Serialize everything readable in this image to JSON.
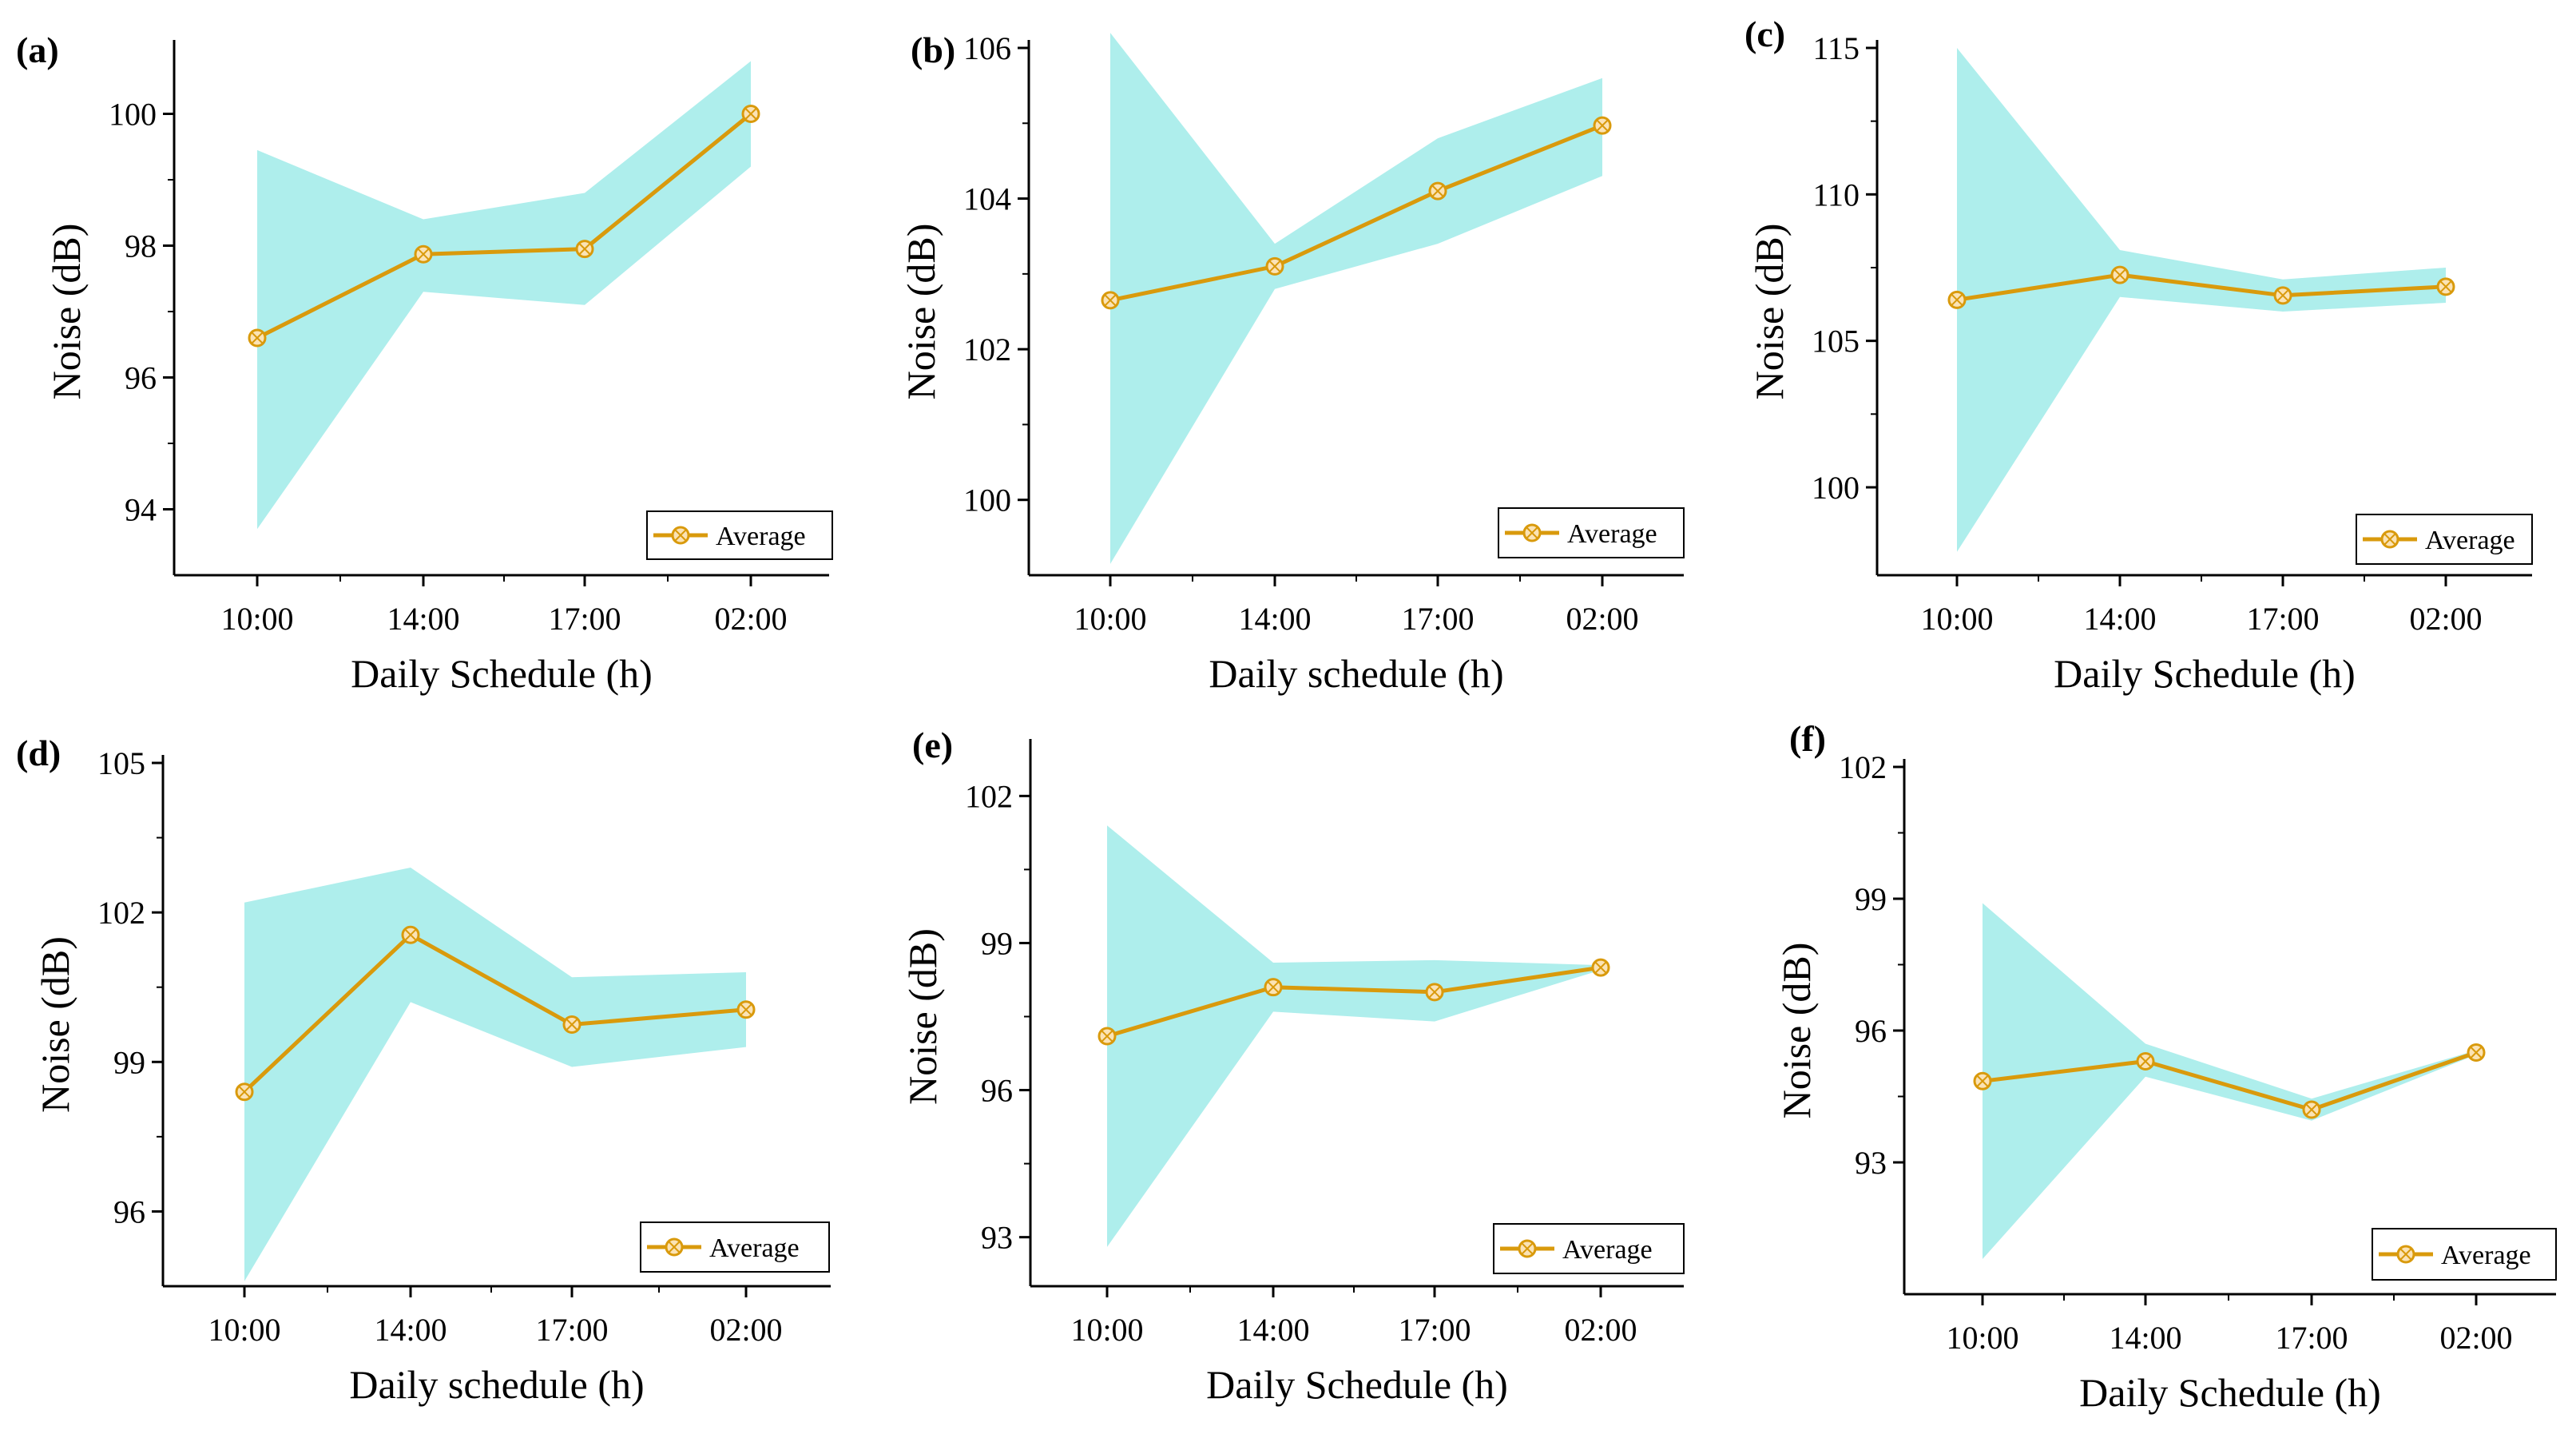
{
  "chart_data": [
    {
      "type": "line",
      "panel_label": "(a)",
      "title": "",
      "xlabel": "Daily Schedule (h)",
      "ylabel": "Noise (dB)",
      "categories": [
        "10:00",
        "14:00",
        "17:00",
        "02:00"
      ],
      "ylim": [
        93,
        101
      ],
      "yticks": [
        94,
        96,
        98,
        100
      ],
      "yticklabels": [
        "94",
        "96",
        "98",
        "100"
      ],
      "series": [
        {
          "name": "Average",
          "values": [
            96.6,
            97.87,
            97.95,
            100.0
          ]
        }
      ],
      "band": {
        "lower": [
          93.7,
          97.3,
          97.1,
          99.2
        ],
        "upper": [
          99.45,
          98.4,
          98.8,
          100.8
        ]
      },
      "legend": "bottom-right",
      "colors": {
        "line": "#d99a0c",
        "band": "#aeeeec",
        "marker_fill": "#fbe3b5"
      }
    },
    {
      "type": "line",
      "panel_label": "(b)",
      "title": "",
      "xlabel": "Daily schedule (h)",
      "ylabel": "Noise (dB)",
      "categories": [
        "10:00",
        "14:00",
        "17:00",
        "02:00"
      ],
      "ylim": [
        99,
        106
      ],
      "yticks": [
        100,
        102,
        104,
        106
      ],
      "yticklabels": [
        "100",
        "102",
        "104",
        "106"
      ],
      "series": [
        {
          "name": "Average",
          "values": [
            102.65,
            103.1,
            104.1,
            104.97
          ]
        }
      ],
      "band": {
        "lower": [
          99.15,
          102.8,
          103.4,
          104.3
        ],
        "upper": [
          106.2,
          103.4,
          104.8,
          105.6
        ]
      },
      "legend": "bottom-right",
      "colors": {
        "line": "#d99a0c",
        "band": "#aeeeec",
        "marker_fill": "#fbe3b5"
      }
    },
    {
      "type": "line",
      "panel_label": "(c)",
      "title": "",
      "xlabel": "Daily Schedule (h)",
      "ylabel": "Noise (dB)",
      "categories": [
        "10:00",
        "14:00",
        "17:00",
        "02:00"
      ],
      "ylim": [
        97,
        115
      ],
      "yticks": [
        100,
        105,
        110,
        115
      ],
      "yticklabels": [
        "100",
        "105",
        "110",
        "115"
      ],
      "series": [
        {
          "name": "Average",
          "values": [
            106.4,
            107.25,
            106.55,
            106.85
          ]
        }
      ],
      "band": {
        "lower": [
          97.8,
          106.5,
          106.0,
          106.3
        ],
        "upper": [
          115.0,
          108.1,
          107.1,
          107.5
        ]
      },
      "legend": "bottom-right",
      "colors": {
        "line": "#d99a0c",
        "band": "#aeeeec",
        "marker_fill": "#fbe3b5"
      }
    },
    {
      "type": "line",
      "panel_label": "(d)",
      "title": "",
      "xlabel": "Daily schedule (h)",
      "ylabel": "Noise (dB)",
      "categories": [
        "10:00",
        "14:00",
        "17:00",
        "02:00"
      ],
      "ylim": [
        94.5,
        105
      ],
      "yticks": [
        96,
        99,
        102,
        105
      ],
      "yticklabels": [
        "96",
        "99",
        "102",
        "105"
      ],
      "series": [
        {
          "name": "Average",
          "values": [
            98.4,
            101.55,
            99.75,
            100.05
          ]
        }
      ],
      "band": {
        "lower": [
          94.6,
          100.2,
          98.9,
          99.3
        ],
        "upper": [
          102.2,
          102.9,
          100.7,
          100.8
        ]
      },
      "legend": "bottom-right",
      "colors": {
        "line": "#d99a0c",
        "band": "#aeeeec",
        "marker_fill": "#fbe3b5"
      }
    },
    {
      "type": "line",
      "panel_label": "(e)",
      "title": "",
      "xlabel": "Daily Schedule (h)",
      "ylabel": "Noise (dB)",
      "categories": [
        "10:00",
        "14:00",
        "17:00",
        "02:00"
      ],
      "ylim": [
        92,
        103
      ],
      "yticks": [
        93,
        96,
        99,
        102
      ],
      "yticklabels": [
        "93",
        "96",
        "99",
        "102"
      ],
      "series": [
        {
          "name": "Average",
          "values": [
            97.1,
            98.1,
            98.0,
            98.5
          ]
        }
      ],
      "band": {
        "lower": [
          92.8,
          97.6,
          97.4,
          98.45
        ],
        "upper": [
          101.4,
          98.6,
          98.65,
          98.55
        ]
      },
      "legend": "bottom-right",
      "colors": {
        "line": "#d99a0c",
        "band": "#aeeeec",
        "marker_fill": "#fbe3b5"
      }
    },
    {
      "type": "line",
      "panel_label": "(f)",
      "title": "",
      "xlabel": "Daily Schedule (h)",
      "ylabel": "Noise (dB)",
      "categories": [
        "10:00",
        "14:00",
        "17:00",
        "02:00"
      ],
      "ylim": [
        90,
        102
      ],
      "yticks": [
        93,
        96,
        99,
        102
      ],
      "yticklabels": [
        "93",
        "96",
        "99",
        "102"
      ],
      "series": [
        {
          "name": "Average",
          "values": [
            94.85,
            95.3,
            94.2,
            95.5
          ]
        }
      ],
      "band": {
        "lower": [
          90.8,
          94.95,
          93.95,
          95.45
        ],
        "upper": [
          98.9,
          95.7,
          94.45,
          95.55
        ]
      },
      "legend": "bottom-right",
      "colors": {
        "line": "#d99a0c",
        "band": "#aeeeec",
        "marker_fill": "#fbe3b5"
      }
    }
  ]
}
